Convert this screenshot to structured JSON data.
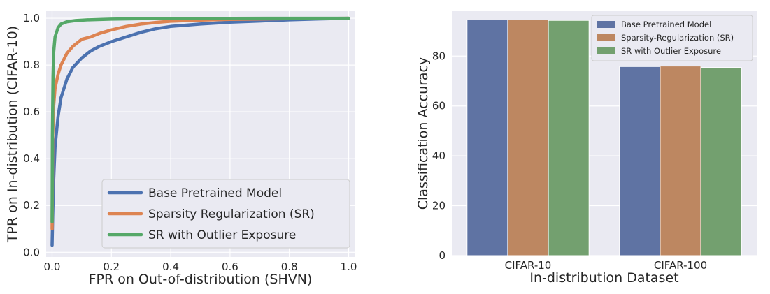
{
  "chart_data": [
    {
      "type": "line",
      "xlabel": "FPR on Out-of-distribution (SHVN)",
      "ylabel": "TPR on In-distribution (CIFAR-10)",
      "xlim": [
        -0.02,
        1.02
      ],
      "ylim": [
        -0.02,
        1.03
      ],
      "xticks": [
        0.0,
        0.2,
        0.4,
        0.6,
        0.8,
        1.0
      ],
      "xtick_labels": [
        "0.0",
        "0.2",
        "0.4",
        "0.6",
        "0.8",
        "1.0"
      ],
      "yticks": [
        0.0,
        0.2,
        0.4,
        0.6,
        0.8,
        1.0
      ],
      "ytick_labels": [
        "0.0",
        "0.2",
        "0.4",
        "0.6",
        "0.8",
        "1.0"
      ],
      "grid": true,
      "legend_position": "lower-right",
      "series": [
        {
          "name": "Base Pretrained Model",
          "color": "#4c72b0",
          "x": [
            0.0,
            0.002,
            0.005,
            0.01,
            0.02,
            0.03,
            0.05,
            0.07,
            0.1,
            0.13,
            0.16,
            0.2,
            0.25,
            0.3,
            0.35,
            0.4,
            0.5,
            0.6,
            0.7,
            0.8,
            0.9,
            1.0
          ],
          "y": [
            0.03,
            0.15,
            0.3,
            0.45,
            0.58,
            0.66,
            0.74,
            0.79,
            0.83,
            0.86,
            0.88,
            0.9,
            0.92,
            0.94,
            0.955,
            0.965,
            0.975,
            0.983,
            0.988,
            0.993,
            0.997,
            1.0
          ]
        },
        {
          "name": "Sparsity Regularization (SR)",
          "color": "#dd8452",
          "x": [
            0.0,
            0.002,
            0.005,
            0.01,
            0.02,
            0.03,
            0.05,
            0.07,
            0.1,
            0.13,
            0.16,
            0.2,
            0.25,
            0.3,
            0.35,
            0.4,
            0.5,
            0.6,
            0.8,
            1.0
          ],
          "y": [
            0.1,
            0.5,
            0.62,
            0.7,
            0.76,
            0.8,
            0.85,
            0.88,
            0.91,
            0.92,
            0.935,
            0.95,
            0.965,
            0.975,
            0.982,
            0.987,
            0.992,
            0.995,
            0.998,
            1.0
          ]
        },
        {
          "name": "SR with Outlier Exposure",
          "color": "#55a868",
          "x": [
            0.0,
            0.001,
            0.003,
            0.005,
            0.01,
            0.02,
            0.03,
            0.05,
            0.08,
            0.12,
            0.2,
            0.3,
            0.5,
            0.8,
            1.0
          ],
          "y": [
            0.13,
            0.5,
            0.75,
            0.85,
            0.92,
            0.96,
            0.975,
            0.985,
            0.99,
            0.993,
            0.996,
            0.998,
            0.999,
            1.0,
            1.0
          ]
        }
      ]
    },
    {
      "type": "bar",
      "xlabel": "In-distribution Dataset",
      "ylabel": "Classification Accuracy",
      "categories": [
        "CIFAR-10",
        "CIFAR-100"
      ],
      "ylim": [
        0,
        98
      ],
      "yticks": [
        0,
        20,
        40,
        60,
        80
      ],
      "ytick_labels": [
        "0",
        "20",
        "40",
        "60",
        "80"
      ],
      "grid": true,
      "legend_position": "top-right",
      "series": [
        {
          "name": "Base Pretrained Model",
          "color": "#5f73a3",
          "values": [
            94.5,
            75.8
          ]
        },
        {
          "name": "Sparsity-Regularization (SR)",
          "color": "#bd8761",
          "values": [
            94.5,
            76.0
          ]
        },
        {
          "name": "SR with Outlier Exposure",
          "color": "#73a06f",
          "values": [
            94.3,
            75.4
          ]
        }
      ]
    }
  ]
}
